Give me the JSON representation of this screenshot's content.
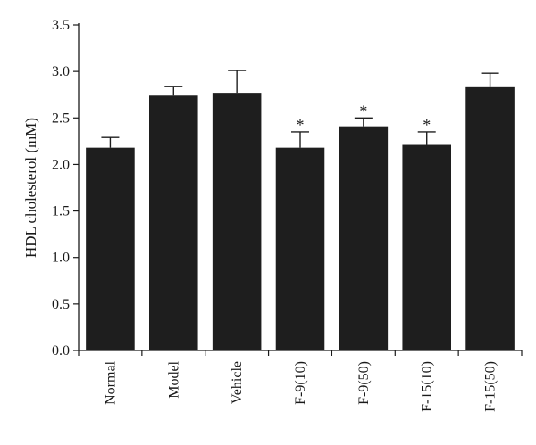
{
  "chart_data": {
    "type": "bar",
    "title": "",
    "xlabel": "",
    "ylabel": "HDL cholesterol (mM)",
    "ylim": [
      0,
      3.5
    ],
    "yticks": [
      "0.0",
      "0.5",
      "1.0",
      "1.5",
      "2.0",
      "2.5",
      "3.0",
      "3.5"
    ],
    "grid": false,
    "categories": [
      "Normal",
      "Model",
      "Vehicle",
      "F-9(10)",
      "F-9(50)",
      "F-15(10)",
      "F-15(50)"
    ],
    "values": [
      2.18,
      2.74,
      2.77,
      2.18,
      2.41,
      2.21,
      2.84
    ],
    "errors": [
      0.11,
      0.1,
      0.24,
      0.17,
      0.09,
      0.14,
      0.14
    ],
    "annotations": [
      "",
      "",
      "",
      "*",
      "*",
      "*",
      ""
    ],
    "bar_color": "#1e1e1e"
  }
}
